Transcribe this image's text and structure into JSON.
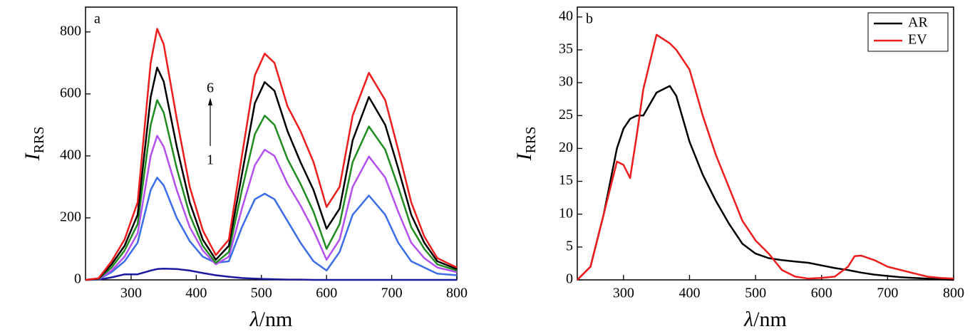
{
  "chart_data": [
    {
      "type": "line",
      "annotation": "a",
      "arrow_top_label": "6",
      "arrow_bottom_label": "1",
      "xlabel_symbol": "λ",
      "xlabel_unit": "/nm",
      "ylabel": "I",
      "ylabel_sub": "RRS",
      "xlim": [
        230,
        800
      ],
      "xticks": [
        300,
        400,
        500,
        600,
        700,
        800
      ],
      "ylim": [
        0,
        880
      ],
      "yticks": [
        0,
        200,
        400,
        600,
        800
      ],
      "x": [
        230,
        250,
        270,
        290,
        310,
        330,
        340,
        350,
        370,
        390,
        410,
        430,
        450,
        470,
        490,
        505,
        520,
        540,
        560,
        580,
        600,
        620,
        640,
        665,
        690,
        710,
        730,
        750,
        770,
        800
      ],
      "series": [
        {
          "color": "#1a1aa0",
          "values": [
            0,
            1,
            8,
            18,
            18,
            30,
            35,
            36,
            35,
            30,
            22,
            15,
            10,
            6,
            4,
            3,
            2,
            1,
            1,
            0,
            0,
            0,
            0,
            0,
            0,
            0,
            0,
            0,
            0,
            0
          ]
        },
        {
          "color": "#3b6de8",
          "values": [
            0,
            2,
            25,
            60,
            120,
            290,
            330,
            305,
            200,
            125,
            75,
            55,
            60,
            170,
            260,
            278,
            260,
            190,
            120,
            60,
            30,
            90,
            210,
            272,
            210,
            120,
            60,
            40,
            20,
            15
          ]
        },
        {
          "color": "#b44ff0",
          "values": [
            0,
            2,
            30,
            75,
            150,
            400,
            465,
            430,
            290,
            170,
            95,
            50,
            75,
            230,
            370,
            420,
            400,
            310,
            240,
            160,
            65,
            130,
            300,
            398,
            330,
            220,
            120,
            70,
            40,
            25
          ]
        },
        {
          "color": "#1e8c1e",
          "values": [
            0,
            3,
            40,
            95,
            180,
            500,
            580,
            540,
            360,
            210,
            110,
            55,
            90,
            290,
            470,
            530,
            500,
            390,
            310,
            220,
            100,
            180,
            380,
            495,
            420,
            300,
            170,
            100,
            50,
            30
          ]
        },
        {
          "color": "#000000",
          "values": [
            0,
            4,
            50,
            110,
            210,
            590,
            685,
            640,
            430,
            250,
            130,
            65,
            110,
            340,
            570,
            638,
            610,
            480,
            380,
            290,
            165,
            230,
            450,
            590,
            500,
            360,
            210,
            120,
            60,
            35
          ]
        },
        {
          "color": "#ee1c1c",
          "values": [
            0,
            5,
            60,
            130,
            250,
            700,
            810,
            760,
            520,
            300,
            160,
            80,
            130,
            400,
            660,
            730,
            700,
            560,
            480,
            380,
            235,
            300,
            530,
            668,
            580,
            420,
            250,
            140,
            70,
            40
          ]
        }
      ]
    },
    {
      "type": "line",
      "annotation": "b",
      "xlabel_symbol": "λ",
      "xlabel_unit": "/nm",
      "ylabel": "I",
      "ylabel_sub": "RRS",
      "xlim": [
        230,
        800
      ],
      "xticks": [
        300,
        400,
        500,
        600,
        700,
        800
      ],
      "ylim": [
        0,
        41.5
      ],
      "yticks": [
        0,
        5,
        10,
        15,
        20,
        25,
        30,
        35,
        40
      ],
      "legend": "upper right",
      "x": [
        230,
        250,
        270,
        290,
        300,
        310,
        320,
        330,
        350,
        370,
        380,
        400,
        420,
        440,
        460,
        480,
        500,
        520,
        540,
        560,
        580,
        600,
        620,
        640,
        650,
        660,
        680,
        700,
        720,
        740,
        760,
        780,
        800
      ],
      "series": [
        {
          "name": "AR",
          "color": "#000000",
          "values": [
            0,
            2,
            10,
            20,
            23,
            24.5,
            25,
            25,
            28.5,
            29.5,
            28,
            21,
            16,
            12,
            8.5,
            5.5,
            4,
            3.3,
            3,
            2.8,
            2.6,
            2.2,
            1.8,
            1.5,
            1.3,
            1.1,
            0.8,
            0.6,
            0.4,
            0.3,
            0.2,
            0.1,
            0
          ]
        },
        {
          "name": "EV",
          "color": "#ee1c1c",
          "values": [
            0,
            2,
            10,
            18,
            17.5,
            15.5,
            22,
            29,
            37.3,
            36,
            35,
            32,
            25,
            19,
            14,
            9,
            6,
            4,
            1.5,
            0.5,
            0.2,
            0.3,
            0.5,
            2,
            3.6,
            3.7,
            3,
            2,
            1.5,
            1,
            0.5,
            0.3,
            0.2
          ]
        }
      ]
    }
  ]
}
